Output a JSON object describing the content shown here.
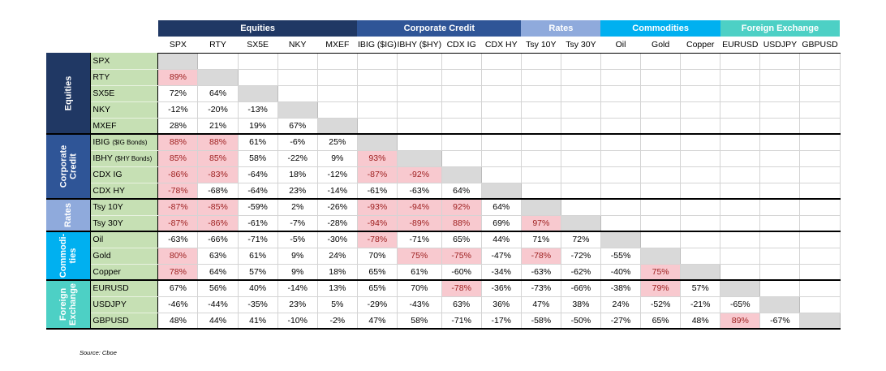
{
  "chart_data": {
    "type": "table",
    "column_groups": [
      {
        "name": "Equities",
        "span": 5,
        "color": "#203864"
      },
      {
        "name": "Corporate Credit",
        "span": 4,
        "color": "#2f5597"
      },
      {
        "name": "Rates",
        "span": 2,
        "color": "#8faadc"
      },
      {
        "name": "Commodities",
        "span": 3,
        "color": "#00b0f0"
      },
      {
        "name": "Foreign Exchange",
        "span": 3,
        "color": "#4dd0c5"
      }
    ],
    "row_groups": [
      {
        "name_lines": [
          "Equities"
        ],
        "span": 5,
        "color": "#203864"
      },
      {
        "name_lines": [
          "Corporate",
          "Credit"
        ],
        "span": 4,
        "color": "#2f5597"
      },
      {
        "name_lines": [
          "Rates"
        ],
        "span": 2,
        "color": "#8faadc"
      },
      {
        "name_lines": [
          "Commodi-",
          "ties"
        ],
        "span": 3,
        "color": "#00b0f0"
      },
      {
        "name_lines": [
          "Foreign",
          "Exchange"
        ],
        "span": 3,
        "color": "#4dd0c5"
      }
    ],
    "columns": [
      "SPX",
      "RTY",
      "SX5E",
      "NKY",
      "MXEF",
      "IBIG ($IG)",
      "IBHY ($HY)",
      "CDX IG",
      "CDX HY",
      "Tsy 10Y",
      "Tsy 30Y",
      "Oil",
      "Gold",
      "Copper",
      "EURUSD",
      "USDJPY",
      "GBPUSD"
    ],
    "rows": [
      {
        "label": "SPX",
        "suffix": "",
        "values": []
      },
      {
        "label": "RTY",
        "suffix": "",
        "values": [
          "89%"
        ]
      },
      {
        "label": "SX5E",
        "suffix": "",
        "values": [
          "72%",
          "64%"
        ]
      },
      {
        "label": "NKY",
        "suffix": "",
        "values": [
          "-12%",
          "-20%",
          "-13%"
        ]
      },
      {
        "label": "MXEF",
        "suffix": "",
        "values": [
          "28%",
          "21%",
          "19%",
          "67%"
        ]
      },
      {
        "label": "IBIG ",
        "suffix": "($IG Bonds)",
        "values": [
          "88%",
          "88%",
          "61%",
          "-6%",
          "25%"
        ]
      },
      {
        "label": "IBHY ",
        "suffix": "($HY Bonds)",
        "values": [
          "85%",
          "85%",
          "58%",
          "-22%",
          "9%",
          "93%"
        ]
      },
      {
        "label": "CDX IG",
        "suffix": "",
        "values": [
          "-86%",
          "-83%",
          "-64%",
          "18%",
          "-12%",
          "-87%",
          "-92%"
        ]
      },
      {
        "label": "CDX HY",
        "suffix": "",
        "values": [
          "-78%",
          "-68%",
          "-64%",
          "23%",
          "-14%",
          "-61%",
          "-63%",
          "64%"
        ]
      },
      {
        "label": "Tsy 10Y",
        "suffix": "",
        "values": [
          "-87%",
          "-85%",
          "-59%",
          "2%",
          "-26%",
          "-93%",
          "-94%",
          "92%",
          "64%"
        ]
      },
      {
        "label": "Tsy 30Y",
        "suffix": "",
        "values": [
          "-87%",
          "-86%",
          "-61%",
          "-7%",
          "-28%",
          "-94%",
          "-89%",
          "88%",
          "69%",
          "97%"
        ]
      },
      {
        "label": "Oil",
        "suffix": "",
        "values": [
          "-63%",
          "-66%",
          "-71%",
          "-5%",
          "-30%",
          "-78%",
          "-71%",
          "65%",
          "44%",
          "71%",
          "72%"
        ]
      },
      {
        "label": "Gold",
        "suffix": "",
        "values": [
          "80%",
          "63%",
          "61%",
          "9%",
          "24%",
          "70%",
          "75%",
          "-75%",
          "-47%",
          "-78%",
          "-72%",
          "-55%"
        ]
      },
      {
        "label": "Copper",
        "suffix": "",
        "values": [
          "78%",
          "64%",
          "57%",
          "9%",
          "18%",
          "65%",
          "61%",
          "-60%",
          "-34%",
          "-63%",
          "-62%",
          "-40%",
          "75%"
        ]
      },
      {
        "label": "EURUSD",
        "suffix": "",
        "values": [
          "67%",
          "56%",
          "40%",
          "-14%",
          "13%",
          "65%",
          "70%",
          "-78%",
          "-36%",
          "-73%",
          "-66%",
          "-38%",
          "79%",
          "57%"
        ]
      },
      {
        "label": "USDJPY",
        "suffix": "",
        "values": [
          "-46%",
          "-44%",
          "-35%",
          "23%",
          "5%",
          "-29%",
          "-43%",
          "63%",
          "36%",
          "47%",
          "38%",
          "24%",
          "-52%",
          "-21%",
          "-65%"
        ]
      },
      {
        "label": "GBPUSD",
        "suffix": "",
        "values": [
          "48%",
          "44%",
          "41%",
          "-10%",
          "-2%",
          "47%",
          "58%",
          "-71%",
          "-17%",
          "-58%",
          "-50%",
          "-27%",
          "65%",
          "48%",
          "89%",
          "-67%"
        ]
      }
    ],
    "highlight_threshold": 75,
    "highlight_color": "#f8c9cf",
    "diagonal_color": "#d9d9d9"
  },
  "source": "Source: Cboe"
}
